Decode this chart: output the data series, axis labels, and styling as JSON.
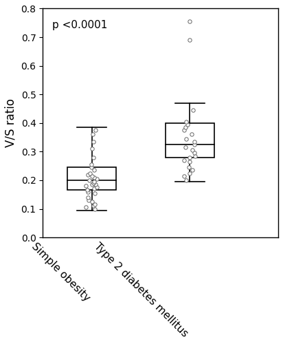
{
  "group1_name": "Simple obesity",
  "group2_name": "Type 2 diabetes mellitus",
  "group1": {
    "q1": 0.165,
    "median": 0.2,
    "q3": 0.245,
    "whisker_low": 0.095,
    "whisker_high": 0.385,
    "dots": [
      0.1,
      0.105,
      0.11,
      0.115,
      0.125,
      0.13,
      0.14,
      0.155,
      0.16,
      0.165,
      0.17,
      0.175,
      0.18,
      0.185,
      0.185,
      0.19,
      0.195,
      0.2,
      0.205,
      0.21,
      0.215,
      0.22,
      0.225,
      0.235,
      0.245,
      0.255,
      0.28,
      0.31,
      0.335,
      0.36,
      0.375
    ],
    "outliers": []
  },
  "group2": {
    "q1": 0.28,
    "median": 0.325,
    "q3": 0.4,
    "whisker_low": 0.195,
    "whisker_high": 0.47,
    "dots": [
      0.2,
      0.215,
      0.225,
      0.235,
      0.245,
      0.265,
      0.27,
      0.28,
      0.285,
      0.295,
      0.305,
      0.315,
      0.325,
      0.335,
      0.345,
      0.36,
      0.375,
      0.385,
      0.395,
      0.405,
      0.445
    ],
    "outliers": [
      0.69,
      0.755
    ]
  },
  "ylim": [
    0,
    0.8
  ],
  "yticks": [
    0,
    0.1,
    0.2,
    0.3,
    0.4,
    0.5,
    0.6,
    0.7,
    0.8
  ],
  "ylabel": "V/S ratio",
  "annotation": "p <0.0001",
  "box_width": 0.5,
  "dot_size": 15,
  "dot_color": "white",
  "dot_edgecolor": "#666666",
  "box_color": "white",
  "box_edgecolor": "black",
  "background_color": "white",
  "positions": [
    1,
    2
  ],
  "xlim": [
    0.5,
    2.9
  ]
}
